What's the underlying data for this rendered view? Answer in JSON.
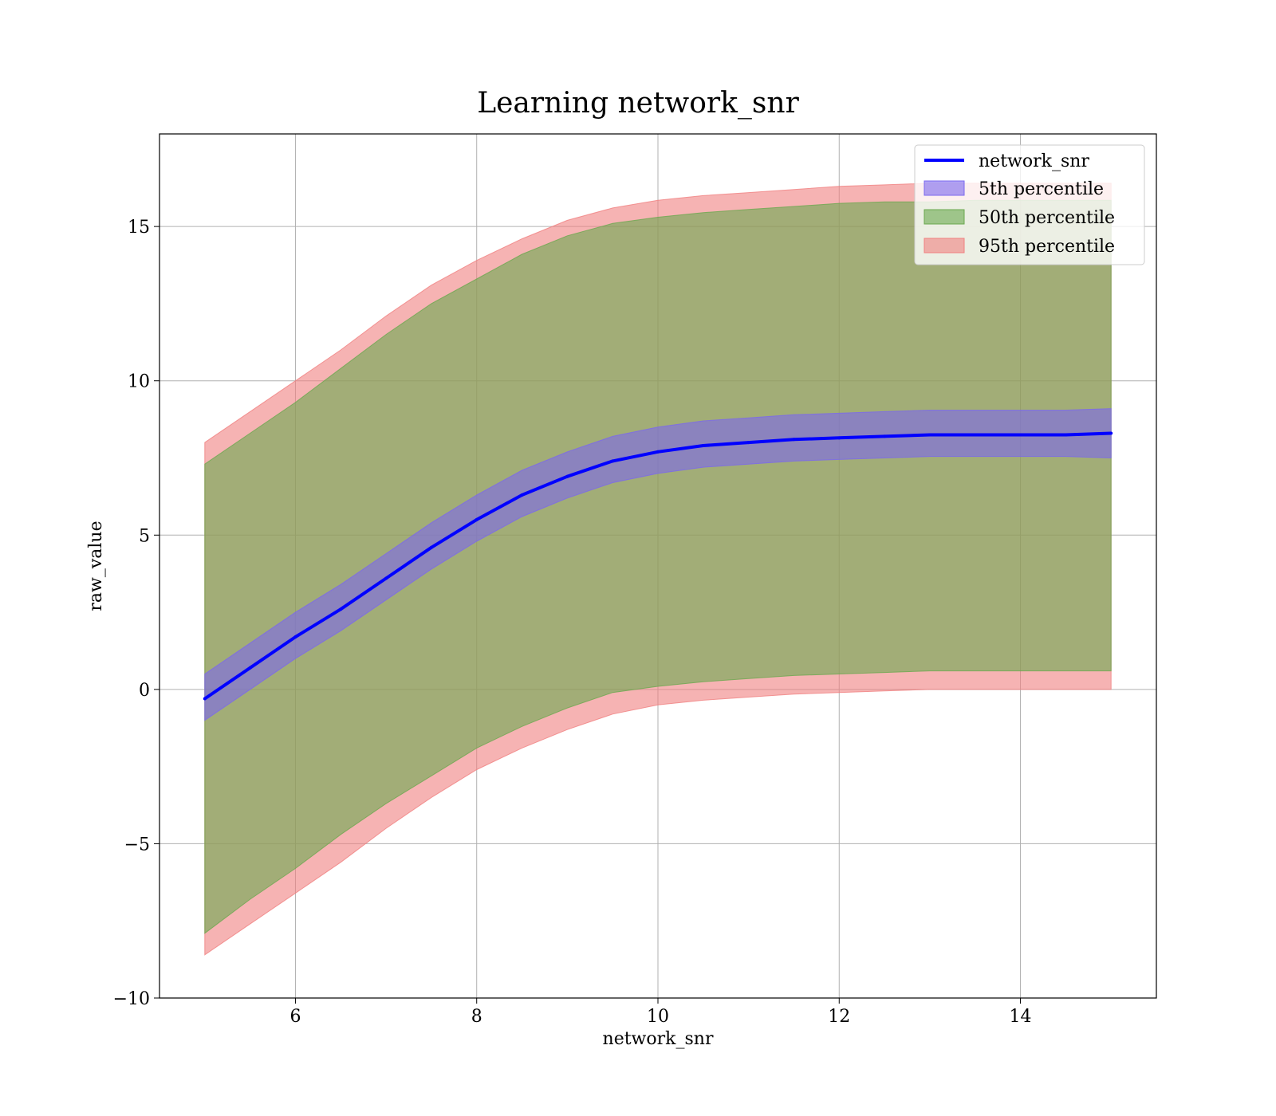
{
  "chart_data": {
    "type": "area",
    "title": "Learning network_snr",
    "xlabel": "network_snr",
    "ylabel": "raw_value",
    "xlim": [
      4.5,
      15.5
    ],
    "ylim": [
      -10,
      18
    ],
    "x_ticks": [
      6,
      8,
      10,
      12,
      14
    ],
    "y_ticks": [
      -10,
      -5,
      0,
      5,
      10,
      15
    ],
    "y_tick_labels": [
      "−10",
      "−5",
      "0",
      "5",
      "10",
      "15"
    ],
    "grid": true,
    "legend_position": "top-right",
    "x": [
      5,
      5.5,
      6,
      6.5,
      7,
      7.5,
      8,
      8.5,
      9,
      9.5,
      10,
      10.5,
      11,
      11.5,
      12,
      12.5,
      13,
      13.5,
      14,
      14.5,
      15
    ],
    "line": {
      "name": "network_snr",
      "color": "#0000ff",
      "values": [
        -0.3,
        0.7,
        1.7,
        2.6,
        3.6,
        4.6,
        5.5,
        6.3,
        6.9,
        7.4,
        7.7,
        7.9,
        8.0,
        8.1,
        8.15,
        8.2,
        8.25,
        8.25,
        8.25,
        8.25,
        8.3
      ]
    },
    "series": [
      {
        "name": "5th percentile",
        "color": "#7b68ee",
        "lower": [
          -1.0,
          0.0,
          1.0,
          1.9,
          2.9,
          3.9,
          4.8,
          5.6,
          6.2,
          6.7,
          7.0,
          7.2,
          7.3,
          7.4,
          7.45,
          7.5,
          7.55,
          7.55,
          7.55,
          7.55,
          7.5
        ],
        "upper": [
          0.5,
          1.5,
          2.5,
          3.4,
          4.4,
          5.4,
          6.3,
          7.1,
          7.7,
          8.2,
          8.5,
          8.7,
          8.8,
          8.9,
          8.95,
          9.0,
          9.05,
          9.05,
          9.05,
          9.05,
          9.1
        ]
      },
      {
        "name": "50th percentile",
        "color": "#6aa84f",
        "lower": [
          -7.9,
          -6.8,
          -5.8,
          -4.7,
          -3.7,
          -2.8,
          -1.9,
          -1.2,
          -0.6,
          -0.1,
          0.1,
          0.25,
          0.35,
          0.45,
          0.5,
          0.55,
          0.6,
          0.6,
          0.6,
          0.6,
          0.6
        ],
        "upper": [
          7.3,
          8.3,
          9.3,
          10.4,
          11.5,
          12.5,
          13.3,
          14.1,
          14.7,
          15.1,
          15.3,
          15.45,
          15.55,
          15.65,
          15.75,
          15.8,
          15.8,
          15.85,
          15.85,
          15.85,
          15.85
        ]
      },
      {
        "name": "95th percentile",
        "color": "#f08080",
        "lower": [
          -8.6,
          -7.6,
          -6.6,
          -5.6,
          -4.5,
          -3.5,
          -2.6,
          -1.9,
          -1.3,
          -0.8,
          -0.5,
          -0.35,
          -0.25,
          -0.15,
          -0.1,
          -0.05,
          0.0,
          0.0,
          0.0,
          0.0,
          0.0
        ],
        "upper": [
          8.0,
          9.0,
          10.0,
          11.0,
          12.1,
          13.1,
          13.9,
          14.6,
          15.2,
          15.6,
          15.85,
          16.0,
          16.1,
          16.2,
          16.3,
          16.35,
          16.4,
          16.4,
          16.4,
          16.4,
          16.4
        ]
      }
    ]
  }
}
